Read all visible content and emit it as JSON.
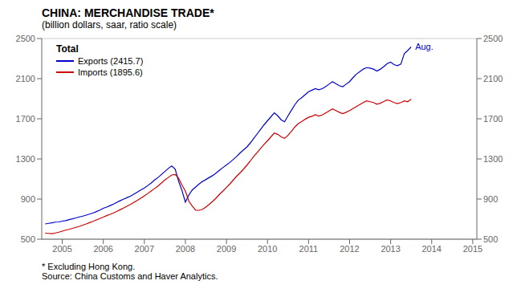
{
  "chart_data": {
    "type": "line",
    "title": "CHINA: MERCHANDISE TRADE*",
    "subtitle": "(billion dollars, saar, ratio scale)",
    "footnotes": [
      "* Excluding Hong Kong.",
      "Source: China Customs and Haver Analytics."
    ],
    "legend_title": "Total",
    "legend": "upper left",
    "grid": true,
    "xlim": [
      2004.5,
      2015.1
    ],
    "xticks": [
      2005,
      2006,
      2007,
      2008,
      2009,
      2010,
      2011,
      2012,
      2013,
      2014,
      2015
    ],
    "ylim": [
      500,
      2500
    ],
    "yticks": [
      500,
      900,
      1300,
      1700,
      2100,
      2500
    ],
    "y2lim": [
      500,
      2500
    ],
    "y2ticks": [
      500,
      900,
      1300,
      1700,
      2100,
      2500
    ],
    "annotations": [
      {
        "text": "Aug.",
        "x": 2013.49931,
        "y": 2416,
        "color": "#0000CC"
      }
    ],
    "x": [
      2004.583,
      2004.66633,
      2004.74966,
      2004.83299,
      2004.91632,
      2004.99965,
      2005.08298,
      2005.16631,
      2005.24964,
      2005.33297,
      2005.4163,
      2005.49963,
      2005.58296,
      2005.66629,
      2005.74962,
      2005.83295,
      2005.91628,
      2005.99961,
      2006.08294,
      2006.16627,
      2006.2496,
      2006.33293,
      2006.41626,
      2006.49959,
      2006.58292,
      2006.66625,
      2006.74958,
      2006.83291,
      2006.91624,
      2006.99957,
      2007.0829,
      2007.16623,
      2007.24956,
      2007.33289,
      2007.41622,
      2007.49955,
      2007.58288,
      2007.66621,
      2007.74954,
      2007.83287,
      2007.9162,
      2007.99953,
      2008.08286,
      2008.16619,
      2008.24952,
      2008.33285,
      2008.41618,
      2008.49951,
      2008.58284,
      2008.66617,
      2008.7495,
      2008.83283,
      2008.91616,
      2008.99949,
      2009.08282,
      2009.16615,
      2009.24948,
      2009.33281,
      2009.41614,
      2009.49947,
      2009.5828,
      2009.66613,
      2009.74946,
      2009.83279,
      2009.91612,
      2009.99945,
      2010.08278,
      2010.16611,
      2010.24944,
      2010.33277,
      2010.4161,
      2010.49943,
      2010.58276,
      2010.66609,
      2010.74942,
      2010.83275,
      2010.91608,
      2010.99941,
      2011.08274,
      2011.16607,
      2011.2494,
      2011.33273,
      2011.41606,
      2011.49939,
      2011.58272,
      2011.66605,
      2011.74938,
      2011.83271,
      2011.91604,
      2011.99937,
      2012.0827,
      2012.16603,
      2012.24936,
      2012.33269,
      2012.41602,
      2012.49935,
      2012.58268,
      2012.66601,
      2012.74934,
      2012.83267,
      2012.916,
      2012.99933,
      2013.08266,
      2013.16599,
      2013.24932,
      2013.33265,
      2013.41598,
      2013.49931
    ],
    "series": [
      {
        "name": "Exports (2415.7)",
        "color": "#0000CC",
        "values": [
          652,
          658,
          663,
          670,
          672,
          680,
          685,
          695,
          703,
          712,
          722,
          730,
          740,
          750,
          762,
          775,
          790,
          808,
          820,
          835,
          850,
          868,
          885,
          900,
          915,
          930,
          950,
          970,
          992,
          1010,
          1035,
          1060,
          1090,
          1115,
          1145,
          1175,
          1205,
          1230,
          1200,
          1080,
          985,
          870,
          940,
          990,
          1020,
          1050,
          1075,
          1095,
          1115,
          1135,
          1160,
          1188,
          1215,
          1240,
          1265,
          1295,
          1325,
          1360,
          1390,
          1420,
          1460,
          1505,
          1550,
          1595,
          1640,
          1680,
          1720,
          1760,
          1730,
          1690,
          1670,
          1730,
          1785,
          1840,
          1885,
          1910,
          1940,
          1970,
          1985,
          2000,
          1990,
          2000,
          2020,
          2045,
          2070,
          2050,
          2030,
          2020,
          2045,
          2070,
          2110,
          2145,
          2170,
          2195,
          2210,
          2205,
          2195,
          2175,
          2195,
          2220,
          2250,
          2265,
          2240,
          2230,
          2245,
          2350,
          2380,
          2416
        ]
      },
      {
        "name": "Imports (1895.6)",
        "color": "#CC0000",
        "values": [
          560,
          558,
          555,
          562,
          570,
          580,
          590,
          598,
          608,
          618,
          628,
          640,
          652,
          665,
          678,
          692,
          706,
          720,
          735,
          748,
          762,
          778,
          795,
          812,
          830,
          848,
          868,
          888,
          910,
          932,
          955,
          980,
          1005,
          1030,
          1060,
          1090,
          1115,
          1140,
          1145,
          1110,
          1040,
          980,
          880,
          830,
          788,
          788,
          798,
          820,
          848,
          878,
          910,
          948,
          980,
          1015,
          1050,
          1090,
          1128,
          1162,
          1198,
          1238,
          1280,
          1325,
          1365,
          1405,
          1445,
          1480,
          1520,
          1558,
          1545,
          1520,
          1505,
          1535,
          1575,
          1618,
          1652,
          1672,
          1695,
          1715,
          1725,
          1740,
          1728,
          1738,
          1758,
          1778,
          1798,
          1782,
          1765,
          1752,
          1765,
          1782,
          1802,
          1822,
          1842,
          1862,
          1878,
          1870,
          1862,
          1845,
          1855,
          1872,
          1888,
          1878,
          1862,
          1852,
          1862,
          1878,
          1870,
          1896
        ]
      }
    ]
  }
}
